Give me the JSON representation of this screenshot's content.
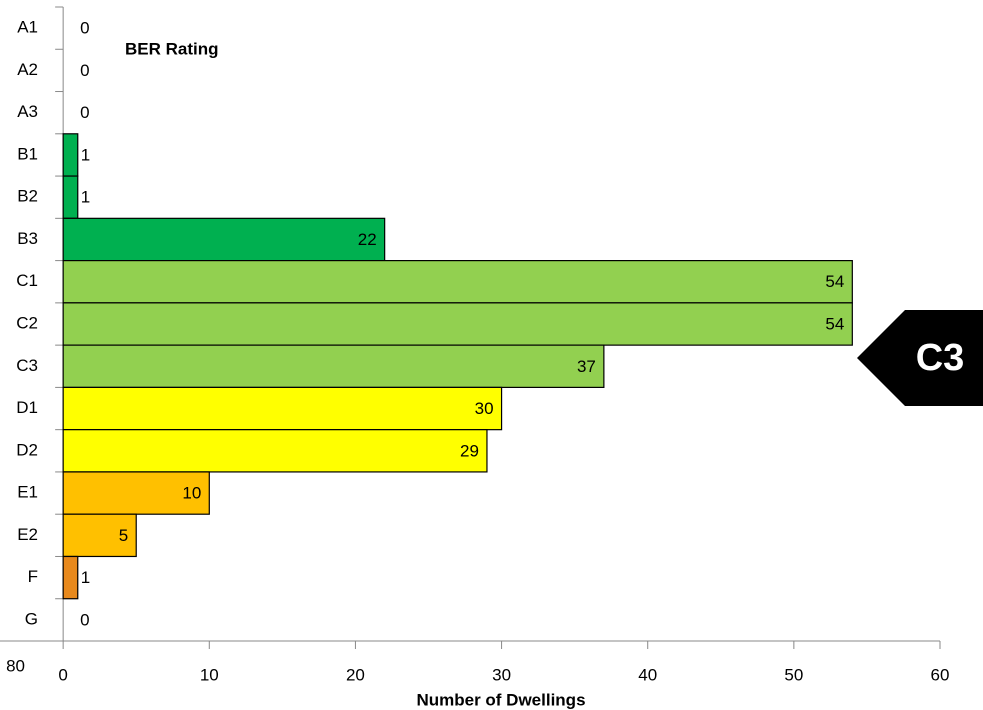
{
  "chart_data": {
    "type": "bar",
    "orientation": "horizontal",
    "title": "BER Rating",
    "x_label": "Number of Dwellings",
    "categories": [
      "A1",
      "A2",
      "A3",
      "B1",
      "B2",
      "B3",
      "C1",
      "C2",
      "C3",
      "D1",
      "D2",
      "E1",
      "E2",
      "F",
      "G"
    ],
    "values": [
      0,
      0,
      0,
      1,
      1,
      22,
      54,
      54,
      37,
      30,
      29,
      10,
      5,
      1,
      0
    ],
    "colors": [
      "#00a650",
      "#00a650",
      "#00a650",
      "#00b050",
      "#00b050",
      "#00b050",
      "#92d050",
      "#92d050",
      "#92d050",
      "#ffff00",
      "#ffff00",
      "#ffc000",
      "#ffc000",
      "#e8891c",
      "#e8891c"
    ],
    "xlim": [
      -3.5,
      60
    ],
    "xticks": [
      0,
      10,
      20,
      30,
      40,
      50,
      60
    ],
    "clipped_tick_label": "80",
    "badge": "C3"
  }
}
